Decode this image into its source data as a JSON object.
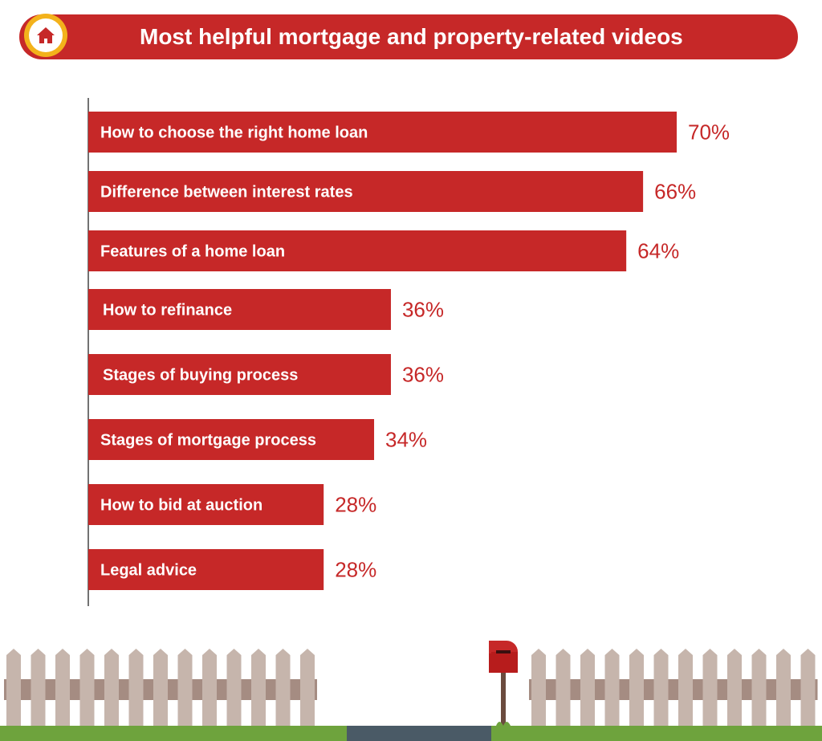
{
  "header": {
    "title": "Most helpful mortgage and property-related videos",
    "icon": "home-icon"
  },
  "colors": {
    "bar": "#c62828",
    "title_bg": "#c62828",
    "badge": "#f3b21b",
    "value_text": "#c62828",
    "grass": "#6ea33d",
    "road": "#4a5a66",
    "fence": "#c6b5ac",
    "fence_rail": "#a58c82"
  },
  "chart_data": {
    "type": "bar",
    "orientation": "horizontal",
    "categories": [
      "How to choose the right home loan",
      "Difference between interest rates",
      "Features of a home loan",
      "How to refinance",
      "Stages of buying process",
      "Stages of mortgage process",
      "How to bid at auction",
      "Legal advice"
    ],
    "values": [
      70,
      66,
      64,
      36,
      36,
      34,
      28,
      28
    ],
    "value_labels": [
      "70%",
      "66%",
      "64%",
      "36%",
      "36%",
      "34%",
      "28%",
      "28%"
    ],
    "title": "Most helpful mortgage and property-related videos",
    "unit": "%",
    "grid": false,
    "legend": "none"
  }
}
